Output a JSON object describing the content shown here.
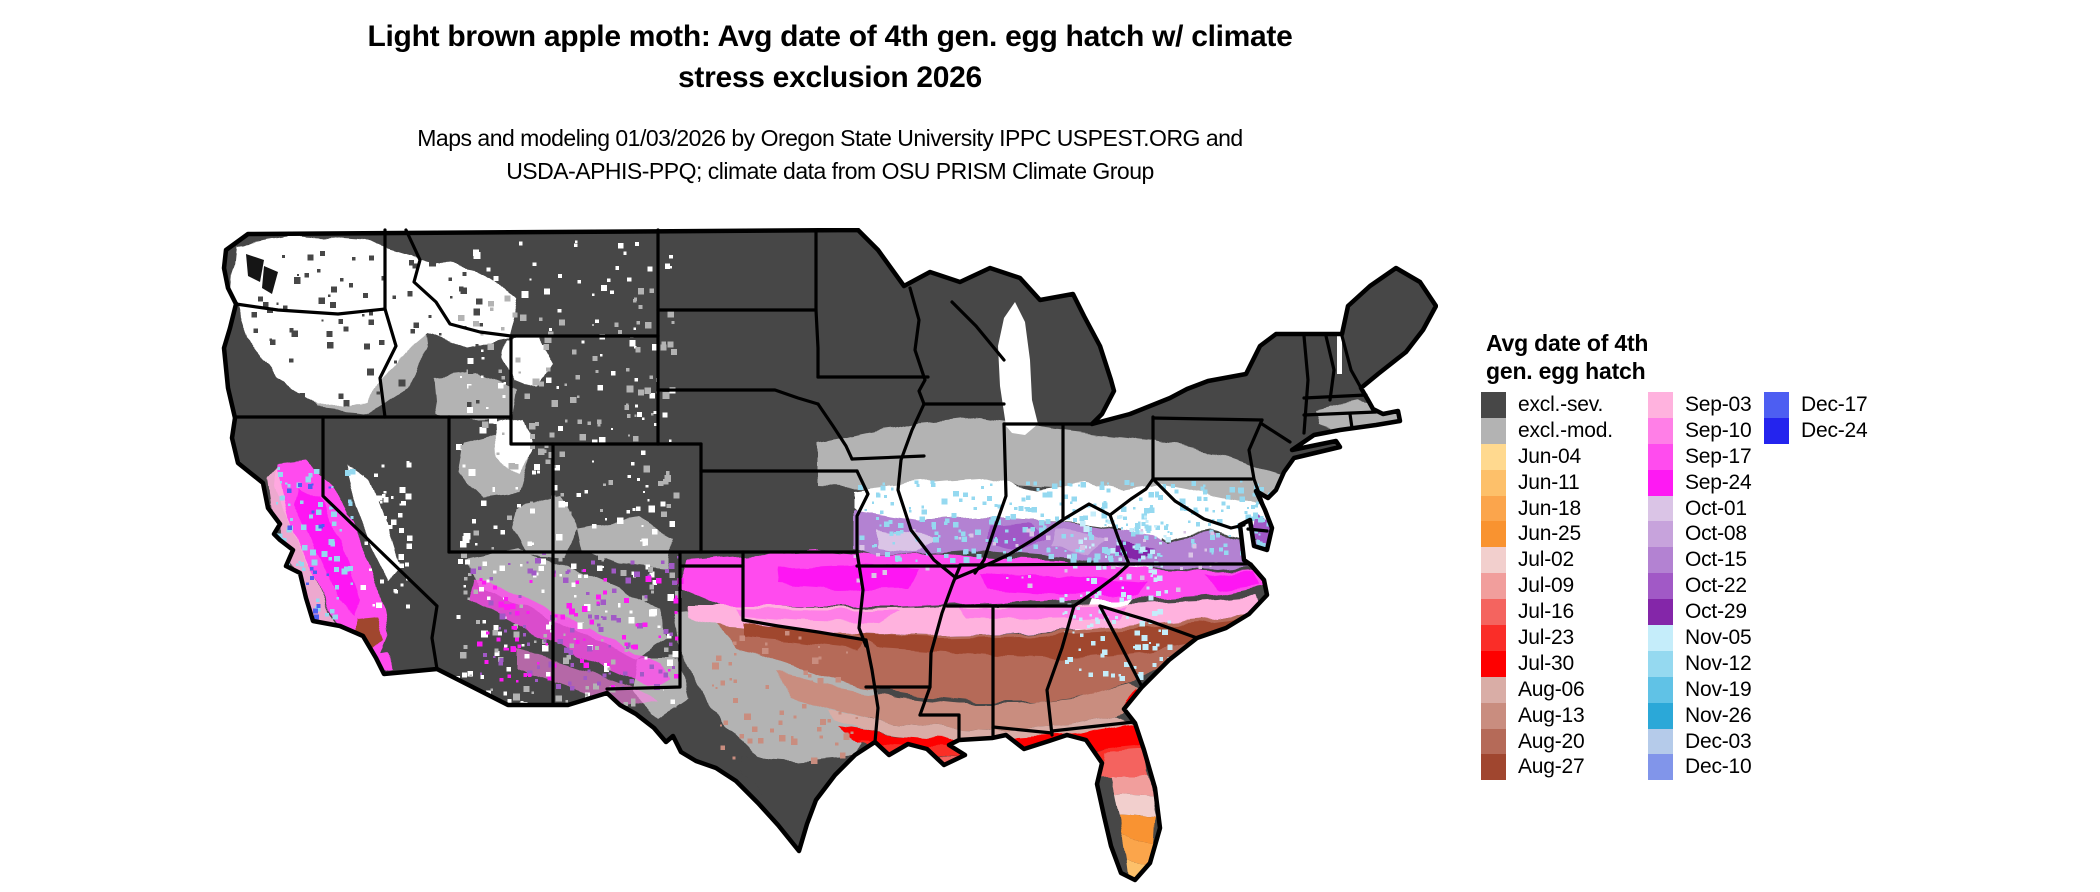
{
  "title": {
    "line1": "Light brown apple moth: Avg date of 4th gen. egg hatch w/ climate",
    "line2": "stress exclusion 2026"
  },
  "subtitle": {
    "line1": "Maps and modeling 01/03/2026 by Oregon State University IPPC USPEST.ORG and",
    "line2": "USDA-APHIS-PPQ; climate data from OSU PRISM Climate Group"
  },
  "legend": {
    "title_line1": "Avg date of 4th",
    "title_line2": "gen. egg hatch",
    "columns": [
      {
        "entries": [
          {
            "label": "excl.-sev.",
            "color": "#474747"
          },
          {
            "label": "excl.-mod.",
            "color": "#b3b3b3"
          },
          {
            "label": "Jun-04",
            "color": "#ffd98f"
          },
          {
            "label": "Jun-11",
            "color": "#fdc06a"
          },
          {
            "label": "Jun-18",
            "color": "#fba54c"
          },
          {
            "label": "Jun-25",
            "color": "#f99330"
          },
          {
            "label": "Jul-02",
            "color": "#f2cfcd"
          },
          {
            "label": "Jul-09",
            "color": "#f19e9c"
          },
          {
            "label": "Jul-16",
            "color": "#f4645f"
          },
          {
            "label": "Jul-23",
            "color": "#fa2d28"
          },
          {
            "label": "Jul-30",
            "color": "#fe0000"
          },
          {
            "label": "Aug-06",
            "color": "#d9ada6"
          },
          {
            "label": "Aug-13",
            "color": "#c98d7f"
          },
          {
            "label": "Aug-20",
            "color": "#b56a58"
          },
          {
            "label": "Aug-27",
            "color": "#a0462f"
          }
        ]
      },
      {
        "entries": [
          {
            "label": "Sep-03",
            "color": "#ffb2de"
          },
          {
            "label": "Sep-10",
            "color": "#ff7fe7"
          },
          {
            "label": "Sep-17",
            "color": "#ff4cee"
          },
          {
            "label": "Sep-24",
            "color": "#fe19f3"
          },
          {
            "label": "Oct-01",
            "color": "#dac4e6"
          },
          {
            "label": "Oct-08",
            "color": "#c7a3dc"
          },
          {
            "label": "Oct-15",
            "color": "#b382d2"
          },
          {
            "label": "Oct-22",
            "color": "#a159c6"
          },
          {
            "label": "Oct-29",
            "color": "#8426a9"
          },
          {
            "label": "Nov-05",
            "color": "#c5edfa"
          },
          {
            "label": "Nov-12",
            "color": "#95d9f0"
          },
          {
            "label": "Nov-19",
            "color": "#60c2e6"
          },
          {
            "label": "Nov-26",
            "color": "#2ba8d8"
          },
          {
            "label": "Dec-03",
            "color": "#b5cbea"
          },
          {
            "label": "Dec-10",
            "color": "#8195ea"
          }
        ]
      },
      {
        "entries": [
          {
            "label": "Dec-17",
            "color": "#4d5ef2"
          },
          {
            "label": "Dec-24",
            "color": "#2424ee"
          }
        ]
      }
    ]
  },
  "map": {
    "region": "Contiguous United States",
    "no_value_color": "#ffffff",
    "water_color": "#ffffff",
    "state_border_color": "#000000",
    "bands_north_to_south": [
      "excl.-sev. (dark gray, northern states and mountain west)",
      "excl.-mod. (light gray band and central Texas)",
      "no value (white band, Pacific Northwest, Sierra, Appalachians)",
      "Oct purples with Nov cyan speckles (Ohio valley, mid-Atlantic)",
      "Sep-17/Sep-24 magenta (Kansas to Virginia, California valley)",
      "Sep-03/Sep-10 pink",
      "Aug-20/Aug-27 brown (deep south)",
      "Aug-06/Aug-13 light brown (gulf states)",
      "Jul-23/Jul-30 red (gulf coast, north Florida)",
      "Jul-09/Jul-16 salmon (coastal strips, central Florida)",
      "Jul-02 pale pink (mid Florida)",
      "Jun-11/Jun-18/Jun-25 orange (south Florida)"
    ]
  }
}
